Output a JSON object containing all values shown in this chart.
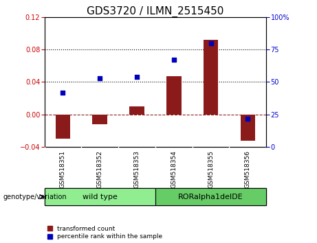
{
  "title": "GDS3720 / ILMN_2515450",
  "samples": [
    "GSM518351",
    "GSM518352",
    "GSM518353",
    "GSM518354",
    "GSM518355",
    "GSM518356"
  ],
  "transformed_count": [
    -0.03,
    -0.012,
    0.01,
    0.047,
    0.092,
    -0.032
  ],
  "percentile_rank": [
    42,
    53,
    54,
    67,
    80,
    22
  ],
  "groups": [
    {
      "label": "wild type",
      "samples": [
        0,
        1,
        2
      ],
      "color": "#90ee90"
    },
    {
      "label": "RORalpha1delDE",
      "samples": [
        3,
        4,
        5
      ],
      "color": "#66cc66"
    }
  ],
  "bar_color": "#8b1a1a",
  "scatter_color": "#0000bb",
  "ylim_left": [
    -0.04,
    0.12
  ],
  "ylim_right": [
    0,
    100
  ],
  "yticks_left": [
    -0.04,
    0,
    0.04,
    0.08,
    0.12
  ],
  "yticks_right": [
    0,
    25,
    50,
    75,
    100
  ],
  "hline_y": 0,
  "dotted_lines": [
    0.04,
    0.08
  ],
  "background_color": "#ffffff",
  "plot_bg_color": "#ffffff",
  "tick_label_color_left": "#cc0000",
  "tick_label_color_right": "#0000cc",
  "title_fontsize": 11,
  "legend_red_label": "transformed count",
  "legend_blue_label": "percentile rank within the sample",
  "genotype_label": "genotype/variation",
  "xlabel_bg_color": "#c8c8c8",
  "group_border_color": "#000000",
  "bar_width": 0.4
}
